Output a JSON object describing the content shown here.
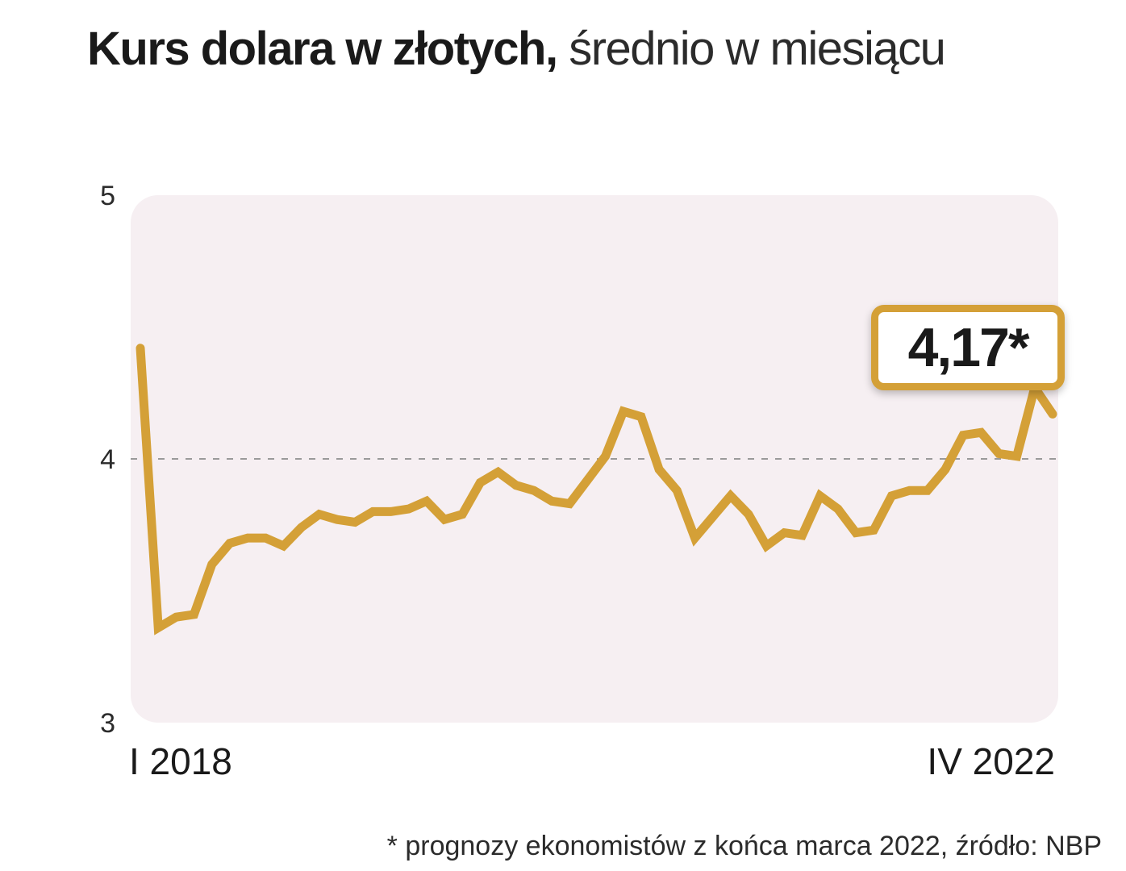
{
  "title": {
    "bold": "Kurs dolara w złotych,",
    "light": "średnio w miesiącu"
  },
  "footnote": "* prognozy ekonomistów z końca marca 2022, źródło: NBP",
  "colors": {
    "line": "#d4a037",
    "plot_background": "#f6eff2",
    "gridline": "#9a9a9a"
  },
  "chart_data": {
    "type": "line",
    "title": "Kurs dolara w złotych, średnio w miesiącu",
    "ylim": [
      3,
      5
    ],
    "yticks": [
      "3",
      "4",
      "5"
    ],
    "x_start_label": "I 2018",
    "x_end_label": "IV 2022",
    "gridline_at": 4,
    "grid": "dashed line at 4",
    "annotation": {
      "text": "4,17*",
      "value": 4.17,
      "note": "prognoza"
    },
    "series": [
      {
        "values": [
          4.42,
          3.36,
          3.4,
          3.41,
          3.6,
          3.68,
          3.7,
          3.7,
          3.67,
          3.74,
          3.79,
          3.77,
          3.76,
          3.8,
          3.8,
          3.81,
          3.84,
          3.77,
          3.79,
          3.91,
          3.95,
          3.9,
          3.88,
          3.84,
          3.83,
          3.92,
          4.01,
          4.18,
          4.16,
          3.96,
          3.88,
          3.7,
          3.78,
          3.86,
          3.79,
          3.67,
          3.72,
          3.71,
          3.86,
          3.81,
          3.72,
          3.73,
          3.86,
          3.88,
          3.88,
          3.96,
          4.09,
          4.1,
          4.02,
          4.01,
          4.27,
          4.17
        ]
      }
    ]
  }
}
